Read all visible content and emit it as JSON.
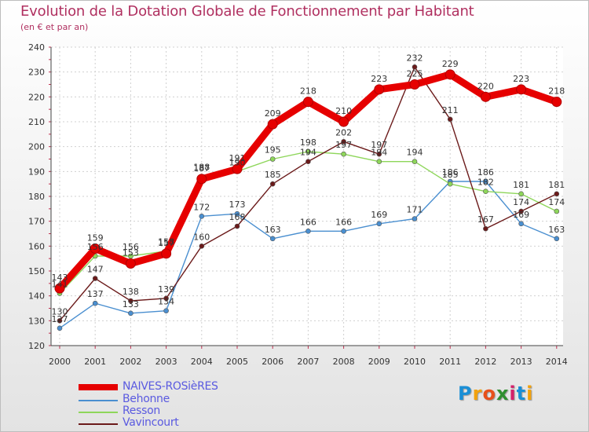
{
  "title": "Evolution de la Dotation Globale de Fonctionnement par Habitant",
  "subtitle": "(en € et par an)",
  "brand": "Proxiti",
  "brand_letters": [
    {
      "ch": "P",
      "color": "#1a8fd6"
    },
    {
      "ch": "r",
      "color": "#f2a20c"
    },
    {
      "ch": "o",
      "color": "#e8501a"
    },
    {
      "ch": "x",
      "color": "#2f8f2f"
    },
    {
      "ch": "i",
      "color": "#d4206a"
    },
    {
      "ch": "t",
      "color": "#1a8fd6"
    },
    {
      "ch": "i",
      "color": "#f2a20c"
    }
  ],
  "chart_data": {
    "type": "line",
    "title": "Evolution de la Dotation Globale de Fonctionnement par Habitant",
    "subtitle": "(en € et par an)",
    "xlabel": "",
    "ylabel": "",
    "x": [
      2000,
      2001,
      2002,
      2003,
      2004,
      2005,
      2006,
      2007,
      2008,
      2009,
      2010,
      2011,
      2012,
      2013,
      2014
    ],
    "ylim": [
      120,
      240
    ],
    "yticks": [
      120,
      130,
      140,
      150,
      160,
      170,
      180,
      190,
      200,
      210,
      220,
      230,
      240
    ],
    "grid": true,
    "legend_position": "bottom-left",
    "series": [
      {
        "name": "NAIVES-ROSièRES",
        "color": "#e60000",
        "values": [
          143,
          159,
          153,
          157,
          187,
          191,
          209,
          218,
          210,
          223,
          225,
          229,
          220,
          223,
          218
        ]
      },
      {
        "name": "Behonne",
        "color": "#4a8fd0",
        "values": [
          127,
          137,
          133,
          134,
          172,
          173,
          163,
          166,
          166,
          169,
          171,
          186,
          186,
          169,
          163
        ]
      },
      {
        "name": "Resson",
        "color": "#8ed65a",
        "values": [
          141,
          156,
          156,
          158,
          188,
          190,
          195,
          198,
          197,
          194,
          194,
          185,
          182,
          181,
          174
        ]
      },
      {
        "name": "Vavincourt",
        "color": "#6b1a1a",
        "values": [
          130,
          147,
          138,
          139,
          160,
          168,
          185,
          194,
          202,
          197,
          232,
          211,
          167,
          174,
          181
        ]
      }
    ]
  }
}
